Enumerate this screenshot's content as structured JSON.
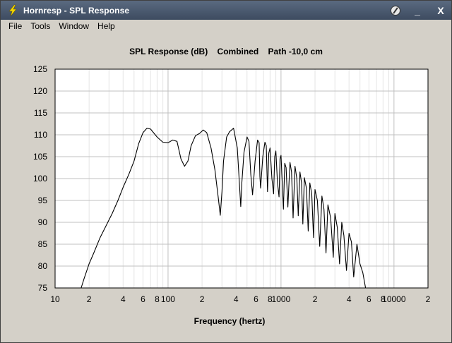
{
  "window": {
    "title": "Hornresp - SPL Response",
    "controls": {
      "help_icon": "circle-slash-icon",
      "minimize": "_",
      "close": "X"
    }
  },
  "menu": [
    {
      "label": "File"
    },
    {
      "label": "Tools"
    },
    {
      "label": "Window"
    },
    {
      "label": "Help"
    }
  ],
  "colors": {
    "plot_bg": "#ffffff",
    "grid_major": "#c0c0c0",
    "grid_minor": "#e4e4e4",
    "curve": "#000000",
    "window_bg": "#d4d0c8",
    "titlebar": "#4a5a70"
  },
  "chart_title": "SPL Response (dB)    Combined    Path -10,0 cm",
  "chart_data": {
    "type": "line",
    "title": "SPL Response (dB)    Combined    Path -10,0 cm",
    "xlabel": "Frequency (hertz)",
    "ylabel": "",
    "x_scale": "log",
    "xlim": [
      10,
      20000
    ],
    "ylim": [
      75,
      125
    ],
    "grid": true,
    "y_ticks": [
      "125",
      "120",
      "115",
      "110",
      "105",
      "100",
      "95",
      "90",
      "85",
      "80",
      "75"
    ],
    "x_ticks": [
      {
        "value": 10,
        "label": "10"
      },
      {
        "value": 20,
        "label": "2"
      },
      {
        "value": 40,
        "label": "4"
      },
      {
        "value": 60,
        "label": "6"
      },
      {
        "value": 80,
        "label": "8"
      },
      {
        "value": 100,
        "label": "100"
      },
      {
        "value": 200,
        "label": "2"
      },
      {
        "value": 400,
        "label": "4"
      },
      {
        "value": 600,
        "label": "6"
      },
      {
        "value": 800,
        "label": "8"
      },
      {
        "value": 1000,
        "label": "1000"
      },
      {
        "value": 2000,
        "label": "2"
      },
      {
        "value": 4000,
        "label": "4"
      },
      {
        "value": 6000,
        "label": "6"
      },
      {
        "value": 8000,
        "label": "8"
      },
      {
        "value": 10000,
        "label": "10000"
      },
      {
        "value": 20000,
        "label": "2"
      }
    ],
    "series": [
      {
        "color": "#000000",
        "x": [
          17,
          18,
          20,
          22,
          25,
          28,
          32,
          36,
          40,
          45,
          50,
          55,
          60,
          65,
          70,
          80,
          90,
          100,
          110,
          120,
          130,
          140,
          150,
          160,
          175,
          190,
          205,
          220,
          240,
          260,
          280,
          290,
          300,
          310,
          330,
          350,
          380,
          410,
          430,
          440,
          450,
          470,
          500,
          520,
          540,
          560,
          590,
          620,
          640,
          650,
          660,
          690,
          720,
          740,
          760,
          780,
          800,
          830,
          860,
          880,
          900,
          930,
          960,
          980,
          1000,
          1050,
          1080,
          1110,
          1150,
          1200,
          1240,
          1280,
          1330,
          1380,
          1420,
          1470,
          1520,
          1560,
          1610,
          1680,
          1740,
          1800,
          1870,
          1940,
          2000,
          2100,
          2200,
          2300,
          2400,
          2500,
          2600,
          2750,
          2900,
          3000,
          3150,
          3300,
          3450,
          3600,
          3800,
          4000,
          4200,
          4400,
          4700,
          5000,
          5300,
          5600
        ],
        "y": [
          75,
          77,
          80.5,
          83,
          86.5,
          89,
          92,
          95,
          98,
          101,
          104,
          108,
          110.5,
          111.5,
          111.3,
          109.5,
          108.3,
          108.2,
          108.8,
          108.5,
          104.5,
          102.8,
          104,
          107.5,
          109.8,
          110.3,
          111.1,
          110.5,
          107,
          102,
          95,
          91.6,
          97,
          104,
          109.5,
          110.7,
          111.5,
          107,
          98,
          93.6,
          99,
          106,
          109.5,
          108.5,
          101,
          96.3,
          104,
          108.8,
          108.2,
          100.5,
          97.8,
          105,
          108.3,
          107.5,
          97,
          105.8,
          107,
          100,
          96.5,
          105,
          106.3,
          99,
          95.8,
          104.5,
          105.3,
          93,
          103.5,
          102.5,
          93.5,
          103.7,
          101.5,
          91,
          102.8,
          100,
          91.5,
          101.5,
          99,
          89.6,
          100.2,
          97.8,
          88,
          99,
          96.5,
          86.5,
          97.5,
          95,
          84.5,
          96,
          93,
          83,
          94,
          91,
          82,
          92,
          88.8,
          80.5,
          90,
          87,
          79,
          87.5,
          85.5,
          77.5,
          85,
          80.5,
          78.5,
          75
        ]
      }
    ]
  }
}
